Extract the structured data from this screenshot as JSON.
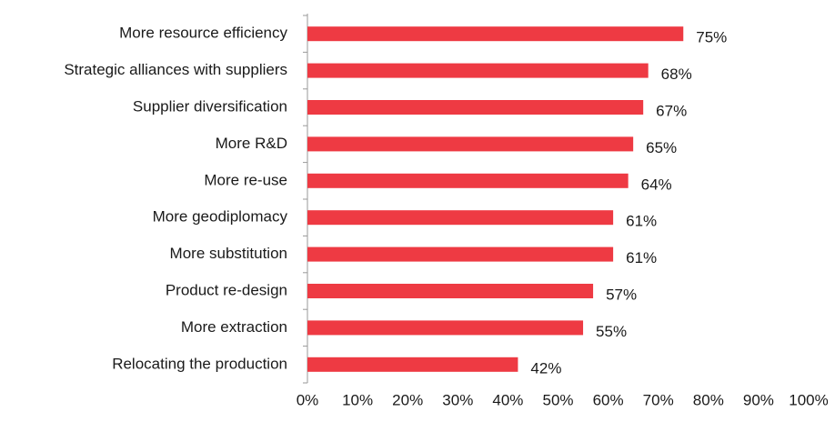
{
  "chart_data": {
    "type": "bar",
    "orientation": "horizontal",
    "categories": [
      "More resource efficiency",
      "Strategic alliances with suppliers",
      "Supplier diversification",
      "More R&D",
      "More re-use",
      "More geodiplomacy",
      "More substitution",
      "Product re-design",
      "More extraction",
      "Relocating the production"
    ],
    "values": [
      75,
      68,
      67,
      65,
      64,
      61,
      61,
      57,
      55,
      42
    ],
    "value_labels": [
      "75%",
      "68%",
      "67%",
      "65%",
      "64%",
      "61%",
      "61%",
      "57%",
      "55%",
      "42%"
    ],
    "color": "#ee3a43",
    "xlim": [
      0,
      100
    ],
    "xticks": [
      {
        "value": 0,
        "label": "0%"
      },
      {
        "value": 10,
        "label": "10%"
      },
      {
        "value": 20,
        "label": "20%"
      },
      {
        "value": 30,
        "label": "30%"
      },
      {
        "value": 40,
        "label": "40%"
      },
      {
        "value": 50,
        "label": "50%"
      },
      {
        "value": 60,
        "label": "60%"
      },
      {
        "value": 70,
        "label": "70%"
      },
      {
        "value": 80,
        "label": "80%"
      },
      {
        "value": 90,
        "label": "90%"
      },
      {
        "value": 100,
        "label": "100%"
      }
    ],
    "grid": false
  }
}
